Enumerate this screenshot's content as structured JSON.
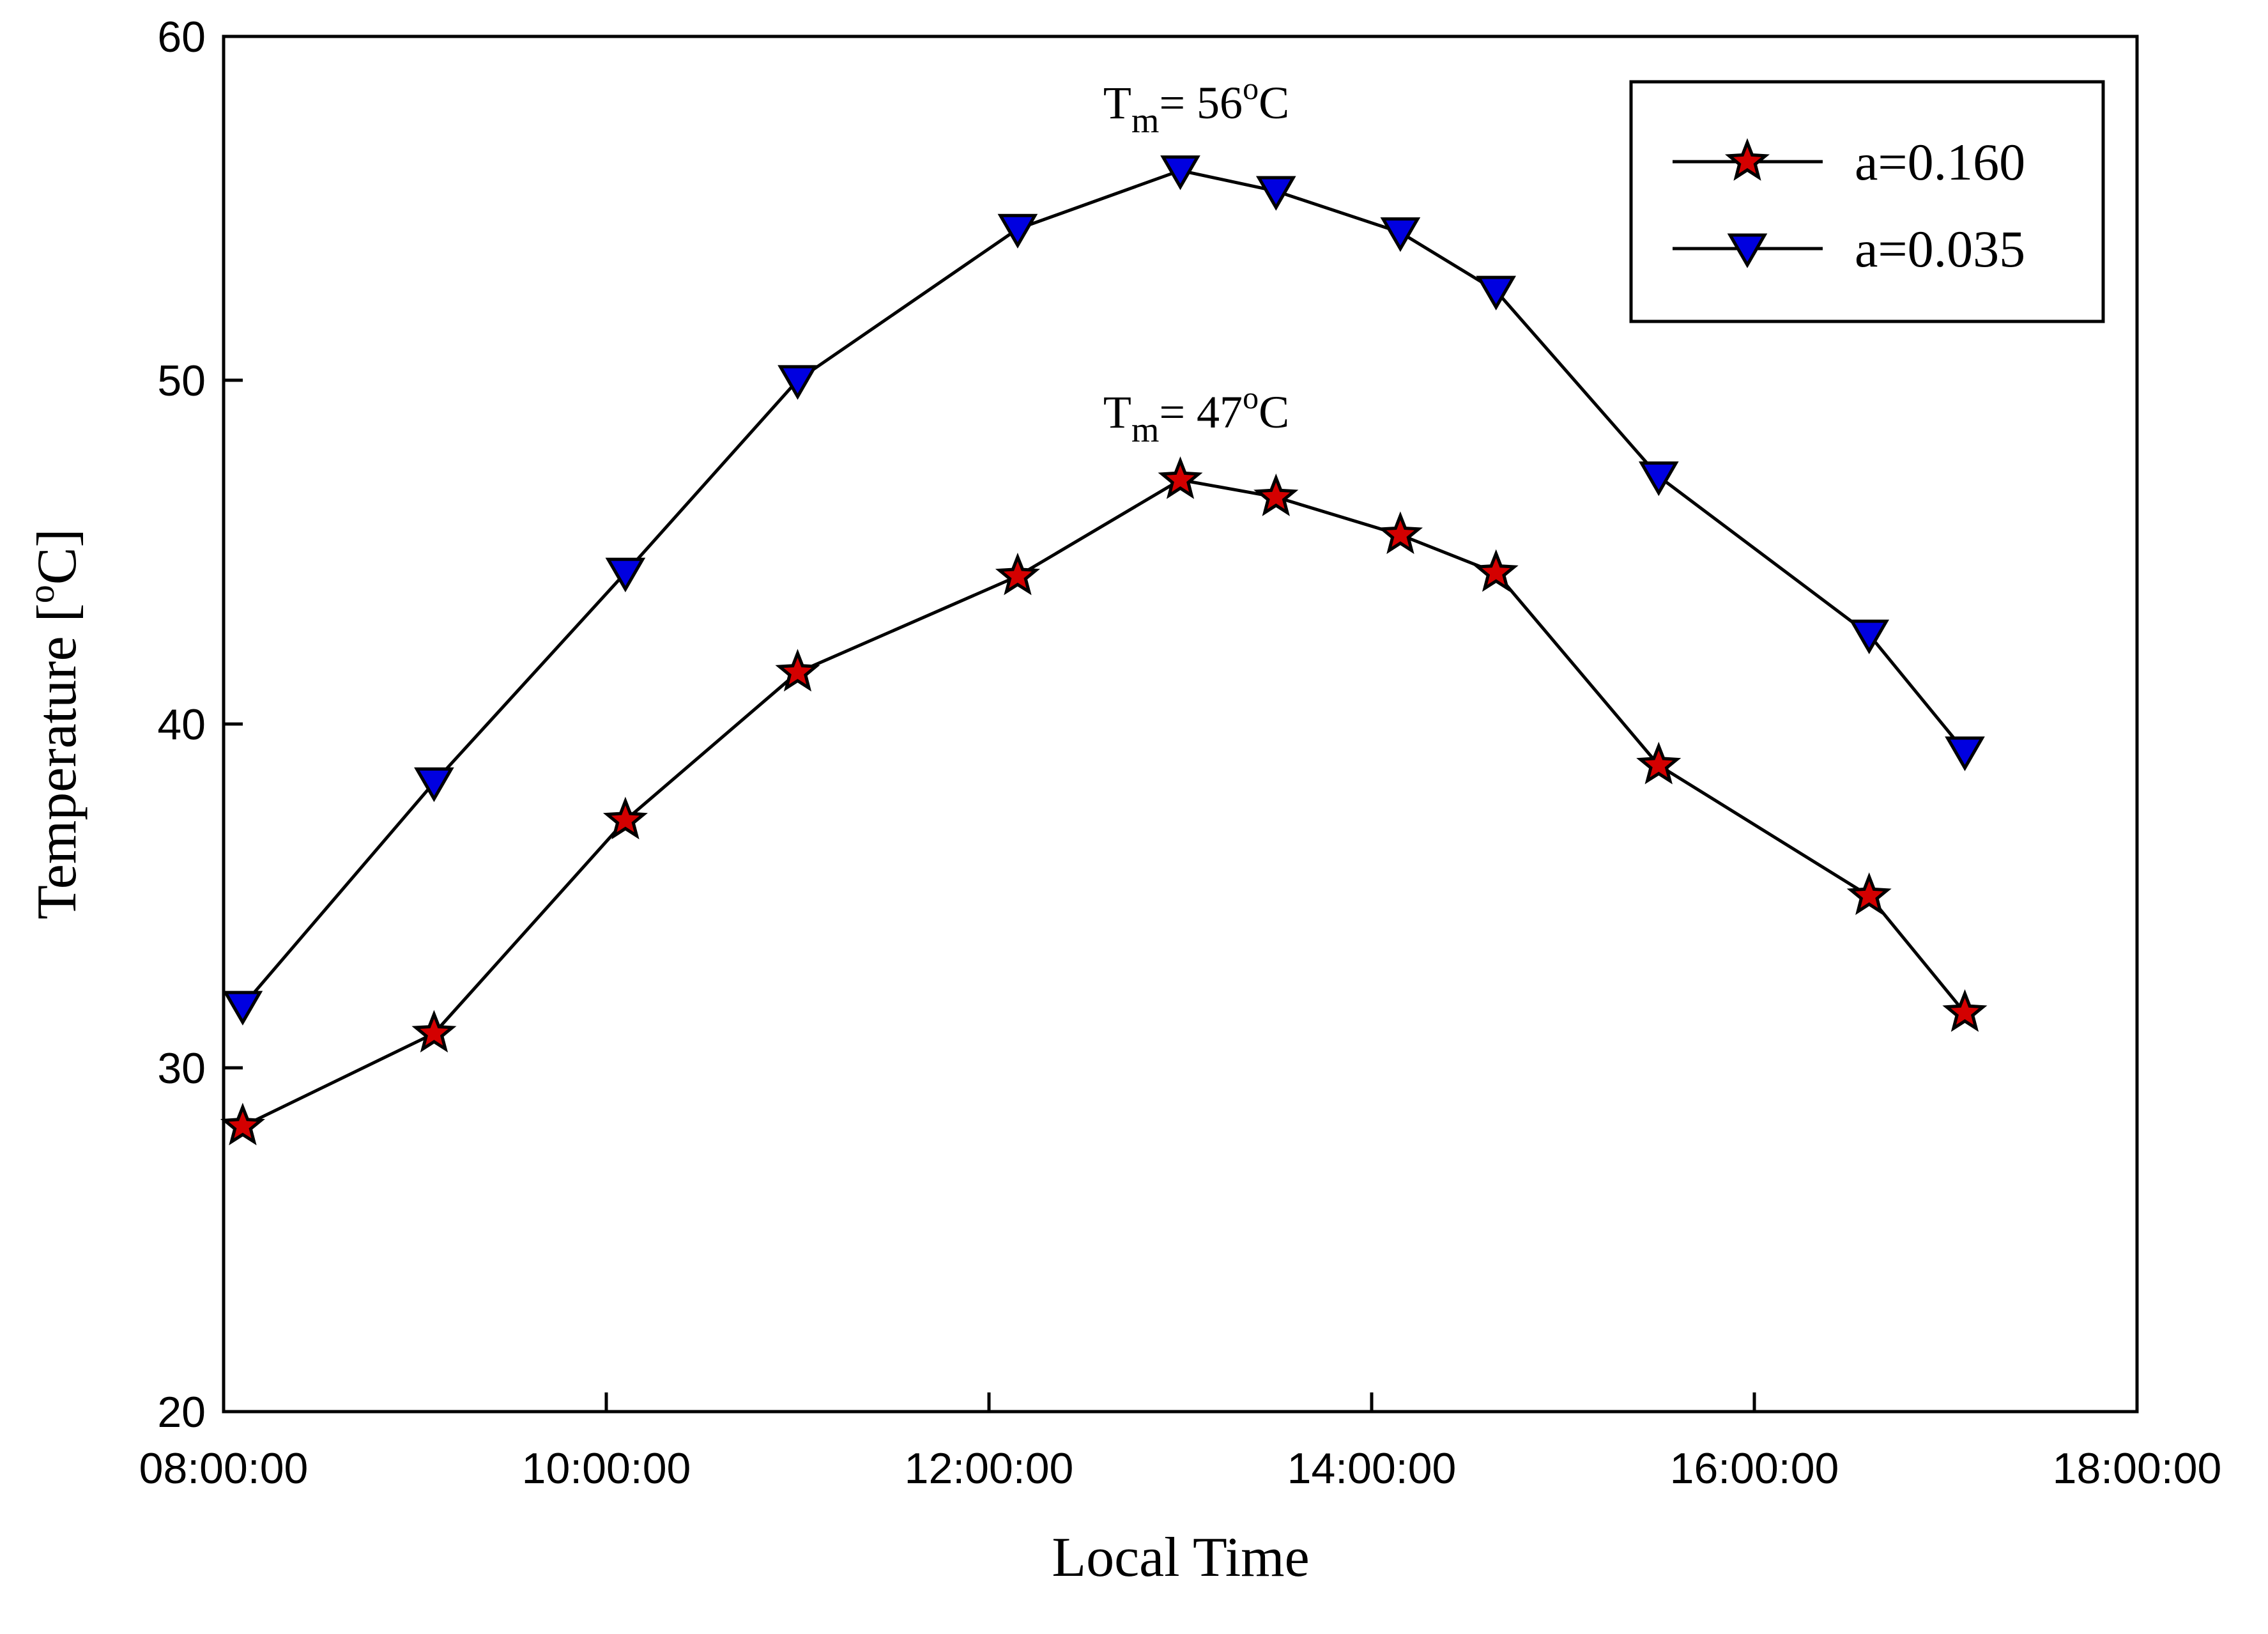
{
  "chart_data": {
    "type": "line",
    "xlabel": "Local Time",
    "ylabel_prefix": "Temperature [",
    "ylabel_sup": "o",
    "ylabel_suffix": "C]",
    "xlim_hours": [
      8,
      18
    ],
    "ylim": [
      20,
      60
    ],
    "x_ticks": [
      8,
      10,
      12,
      14,
      16,
      18
    ],
    "x_tick_labels": [
      "08:00:00",
      "10:00:00",
      "12:00:00",
      "14:00:00",
      "16:00:00",
      "18:00:00"
    ],
    "y_ticks": [
      20,
      30,
      40,
      50,
      60
    ],
    "y_tick_labels": [
      "20",
      "30",
      "40",
      "50",
      "60"
    ],
    "x_hours": [
      8.1,
      9.1,
      10.1,
      11.0,
      12.15,
      13.0,
      13.5,
      14.15,
      14.65,
      15.5,
      16.6,
      17.1
    ],
    "series": [
      {
        "name": "a=0.160",
        "marker": "star",
        "marker_color": "#d40000",
        "values": [
          28.3,
          31.0,
          37.2,
          41.5,
          44.3,
          47.1,
          46.6,
          45.5,
          44.4,
          38.8,
          35.0,
          31.6
        ]
      },
      {
        "name": "a=0.035",
        "marker": "triangle-down",
        "marker_color": "#0000e0",
        "values": [
          31.8,
          38.3,
          44.4,
          50.0,
          54.4,
          56.1,
          55.5,
          54.3,
          52.6,
          47.2,
          42.6,
          39.2
        ]
      }
    ],
    "annotations": [
      {
        "base": "T",
        "sub": "m",
        "value": "= 56",
        "sup": "o",
        "unit": "C",
        "anchor_x_hours": 13.0,
        "anchor_y": 56.1
      },
      {
        "base": "T",
        "sub": "m",
        "value": "= 47",
        "sup": "o",
        "unit": "C",
        "anchor_x_hours": 13.0,
        "anchor_y": 47.1
      }
    ],
    "legend_position": "top-right",
    "grid": false
  }
}
